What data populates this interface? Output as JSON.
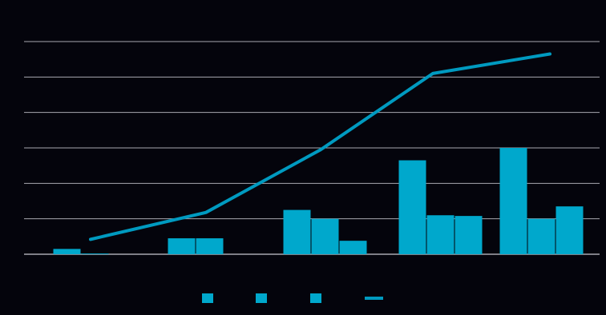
{
  "chart_data": {
    "type": "bar",
    "title": "",
    "xlabel": "",
    "ylabel": "",
    "categories": [
      "",
      "",
      "",
      "",
      ""
    ],
    "ylim": [
      0,
      6
    ],
    "y_ticks": [
      0,
      1,
      2,
      3,
      4,
      5,
      6
    ],
    "grid": true,
    "legend_position": "bottom",
    "series": [
      {
        "values": [
          0.15,
          0.45,
          1.25,
          2.65,
          3.0
        ]
      },
      {
        "values": [
          0.02,
          0.45,
          1.0,
          1.1,
          1.0
        ]
      },
      {
        "values": [
          0.0,
          0.0,
          0.38,
          1.08,
          1.35
        ]
      },
      {
        "type": "line",
        "values": [
          0.42,
          1.18,
          2.95,
          5.1,
          5.65
        ]
      }
    ]
  },
  "colors": {
    "background": "#04040c",
    "bar": "#00a8cc",
    "line": "#009ac0",
    "grid": "#a8a8b0"
  }
}
